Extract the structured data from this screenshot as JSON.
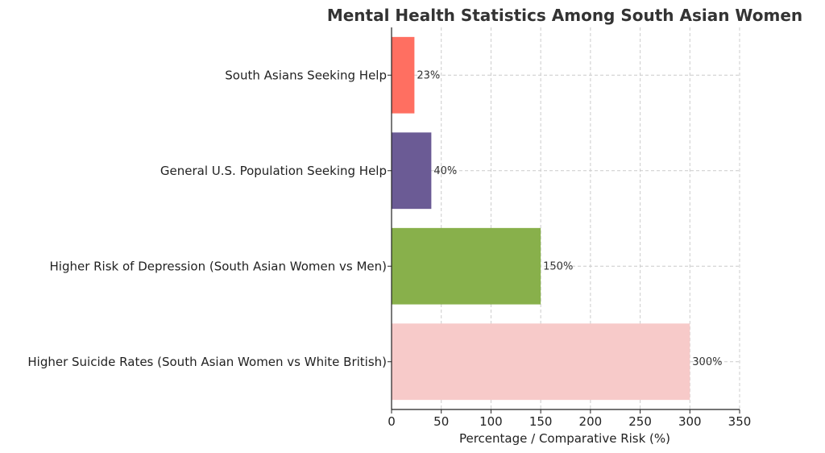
{
  "chart_data": {
    "type": "bar",
    "orientation": "horizontal",
    "title": "Mental Health Statistics Among South Asian Women",
    "xlabel": "Percentage / Comparative Risk (%)",
    "ylabel": "",
    "xlim": [
      0,
      350
    ],
    "xticks": [
      0,
      50,
      100,
      150,
      200,
      250,
      300,
      350
    ],
    "grid": true,
    "categories": [
      "South Asians Seeking Help",
      "General U.S. Population Seeking Help",
      "Higher Risk of Depression (South Asian Women vs Men)",
      "Higher Suicide Rates (South Asian Women vs White British)"
    ],
    "values": [
      23,
      40,
      150,
      300
    ],
    "value_labels": [
      "23%",
      "40%",
      "150%",
      "300%"
    ],
    "colors": [
      "#ff6f61",
      "#6b5b95",
      "#88b04b",
      "#f7cac9"
    ]
  }
}
